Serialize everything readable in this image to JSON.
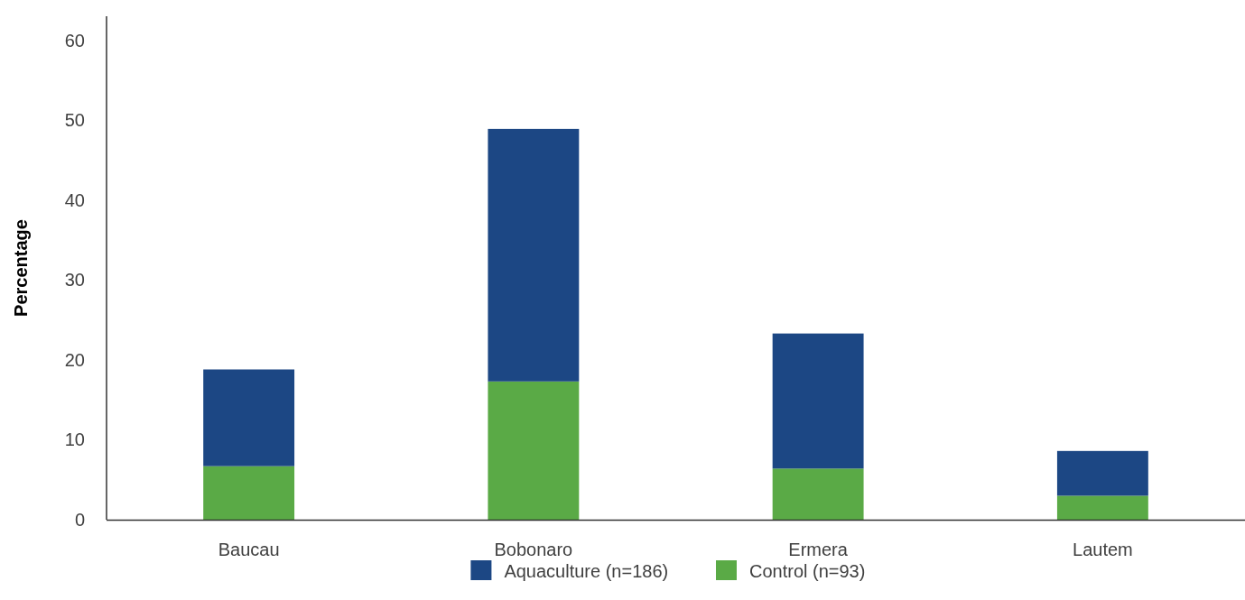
{
  "chart_data": {
    "type": "bar",
    "ylabel": "Percentage",
    "categories": [
      "Baucau",
      "Bobonaro",
      "Ermera",
      "Lautem"
    ],
    "series": [
      {
        "name": "Control (n=93)",
        "color": "#5aaa46",
        "values": [
          6.7,
          17.3,
          6.4,
          3.0
        ]
      },
      {
        "name": "Aquaculture (n=186)",
        "color": "#1c4784",
        "values": [
          12.1,
          31.6,
          16.9,
          5.6
        ]
      }
    ],
    "stacked": true,
    "ylim": [
      0,
      63
    ],
    "yticks": [
      0,
      10,
      20,
      30,
      40,
      50,
      60
    ],
    "legend": "bottom"
  }
}
